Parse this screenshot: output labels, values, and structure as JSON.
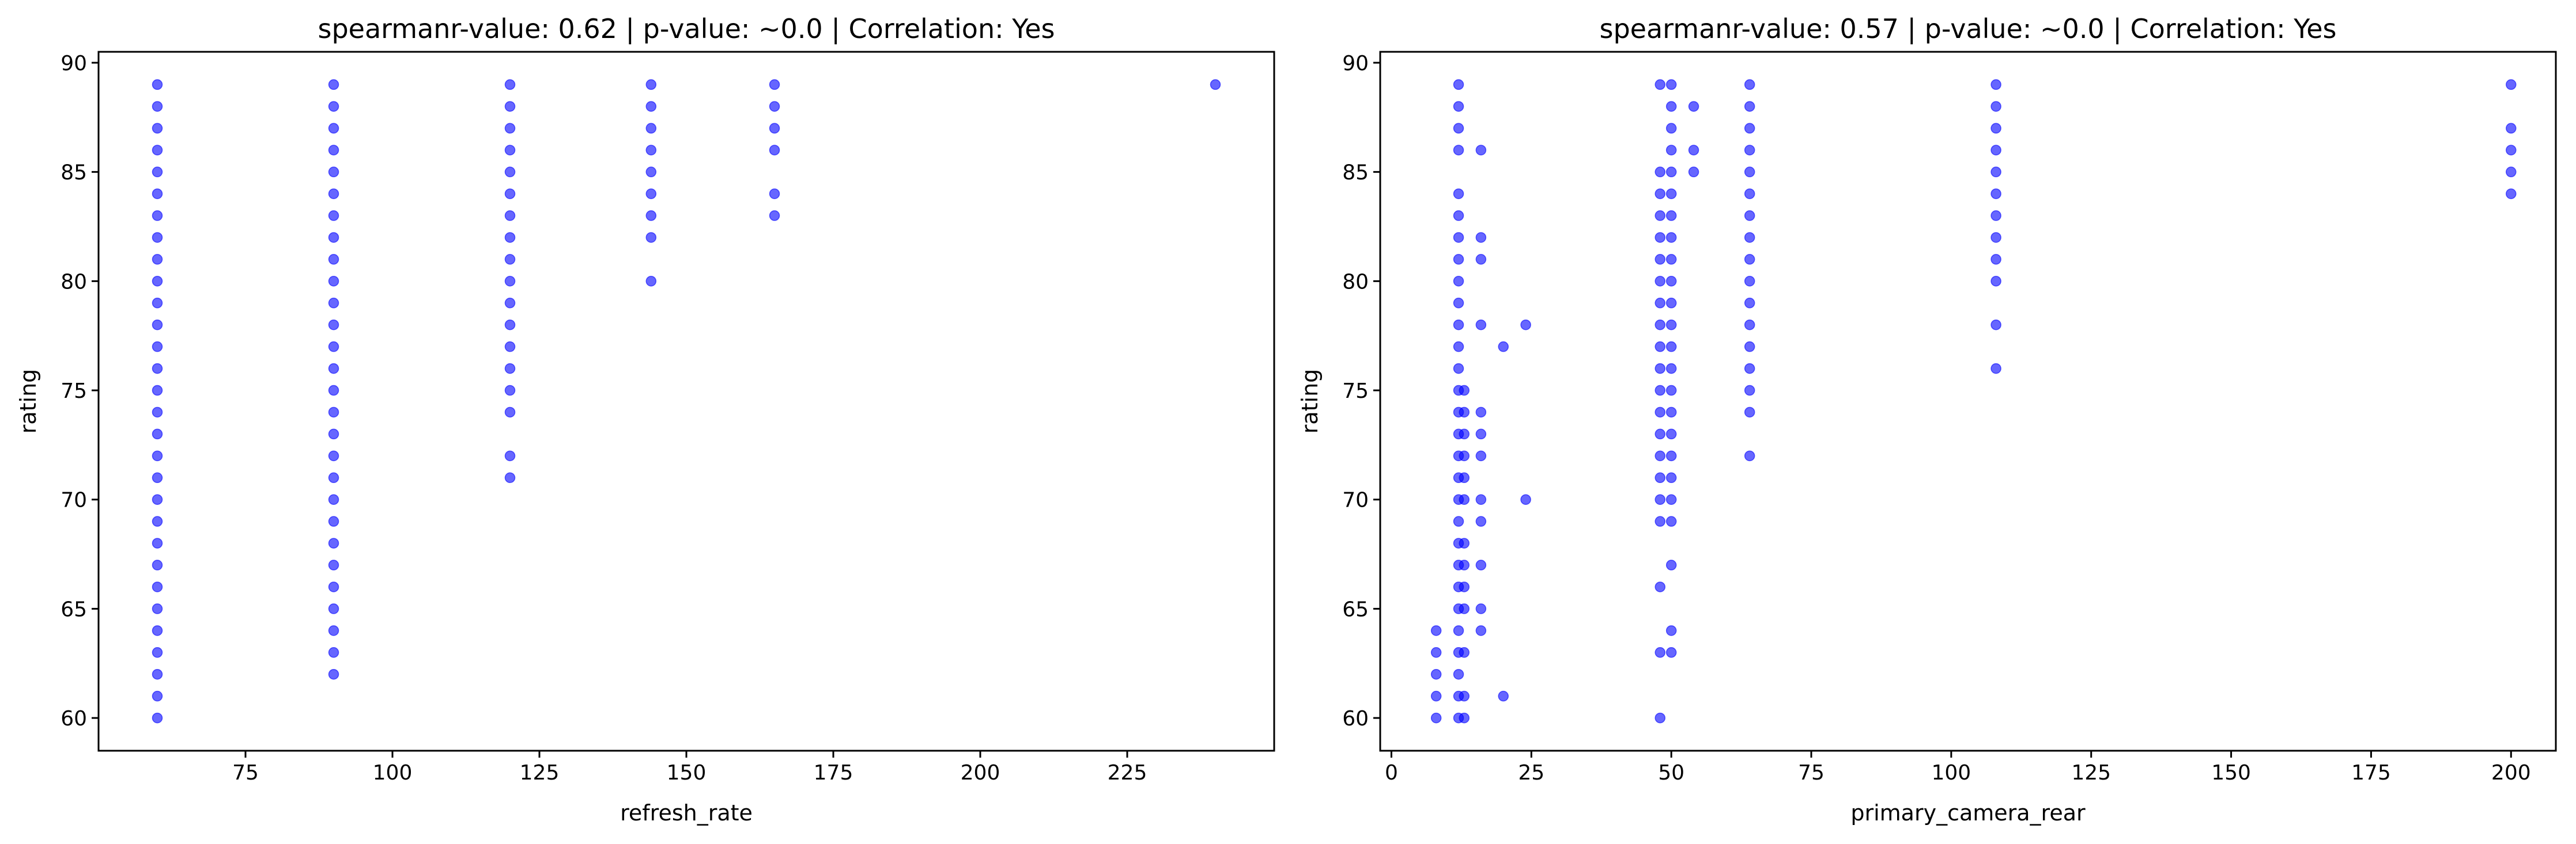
{
  "chart_data": [
    {
      "type": "scatter",
      "title": "spearmanr-value: 0.62 | p-value: ~0.0 | Correlation: Yes",
      "xlabel": "refresh_rate",
      "ylabel": "rating",
      "xlim": [
        50,
        250
      ],
      "ylim": [
        58.5,
        90.5
      ],
      "xticks": [
        75,
        100,
        125,
        150,
        175,
        200,
        225
      ],
      "yticks": [
        60,
        65,
        70,
        75,
        80,
        85,
        90
      ],
      "color": "#0000ff",
      "grid": false,
      "columns": [
        {
          "x": 60,
          "y": [
            60,
            61,
            62,
            63,
            64,
            65,
            66,
            67,
            68,
            69,
            70,
            71,
            72,
            73,
            74,
            75,
            76,
            77,
            78,
            79,
            80,
            81,
            82,
            83,
            84,
            85,
            86,
            87,
            88,
            89
          ]
        },
        {
          "x": 90,
          "y": [
            62,
            63,
            64,
            65,
            66,
            67,
            68,
            69,
            70,
            71,
            72,
            73,
            74,
            75,
            76,
            77,
            78,
            79,
            80,
            81,
            82,
            83,
            84,
            85,
            86,
            87,
            88,
            89
          ]
        },
        {
          "x": 120,
          "y": [
            71,
            72,
            74,
            75,
            76,
            77,
            78,
            79,
            80,
            81,
            82,
            83,
            84,
            85,
            86,
            87,
            88,
            89
          ]
        },
        {
          "x": 144,
          "y": [
            80,
            82,
            83,
            84,
            85,
            86,
            87,
            88,
            89
          ]
        },
        {
          "x": 165,
          "y": [
            83,
            84,
            86,
            87,
            88,
            89
          ]
        },
        {
          "x": 240,
          "y": [
            89
          ]
        }
      ]
    },
    {
      "type": "scatter",
      "title": "spearmanr-value: 0.57 | p-value: ~0.0 | Correlation: Yes",
      "xlabel": "primary_camera_rear",
      "ylabel": "rating",
      "xlim": [
        -2,
        208
      ],
      "ylim": [
        58.5,
        90.5
      ],
      "xticks": [
        0,
        25,
        50,
        75,
        100,
        125,
        150,
        175,
        200
      ],
      "yticks": [
        60,
        65,
        70,
        75,
        80,
        85,
        90
      ],
      "color": "#0000ff",
      "grid": false,
      "columns": [
        {
          "x": 8,
          "y": [
            60,
            61,
            62,
            63,
            64
          ]
        },
        {
          "x": 12,
          "y": [
            60,
            61,
            62,
            63,
            64,
            65,
            66,
            67,
            68,
            69,
            70,
            71,
            72,
            73,
            74,
            75,
            76,
            77,
            78,
            79,
            80,
            81,
            82,
            83,
            84,
            86,
            87,
            88,
            89
          ]
        },
        {
          "x": 13,
          "y": [
            60,
            61,
            63,
            65,
            66,
            67,
            68,
            70,
            71,
            72,
            73,
            74,
            75
          ]
        },
        {
          "x": 16,
          "y": [
            64,
            65,
            67,
            69,
            70,
            72,
            73,
            74,
            78,
            81,
            82,
            86
          ]
        },
        {
          "x": 20,
          "y": [
            61,
            77
          ]
        },
        {
          "x": 24,
          "y": [
            70,
            78
          ]
        },
        {
          "x": 48,
          "y": [
            60,
            63,
            66,
            69,
            70,
            71,
            72,
            73,
            74,
            75,
            76,
            77,
            78,
            79,
            80,
            81,
            82,
            83,
            84,
            85,
            89
          ]
        },
        {
          "x": 50,
          "y": [
            63,
            64,
            67,
            69,
            70,
            71,
            72,
            73,
            74,
            75,
            76,
            77,
            78,
            79,
            80,
            81,
            82,
            83,
            84,
            85,
            86,
            87,
            88,
            89
          ]
        },
        {
          "x": 54,
          "y": [
            85,
            86,
            88
          ]
        },
        {
          "x": 64,
          "y": [
            72,
            74,
            75,
            76,
            77,
            78,
            79,
            80,
            81,
            82,
            83,
            84,
            85,
            86,
            87,
            88,
            89
          ]
        },
        {
          "x": 108,
          "y": [
            76,
            78,
            80,
            81,
            82,
            83,
            84,
            85,
            86,
            87,
            88,
            89
          ]
        },
        {
          "x": 200,
          "y": [
            84,
            85,
            86,
            87,
            89
          ]
        }
      ]
    }
  ]
}
